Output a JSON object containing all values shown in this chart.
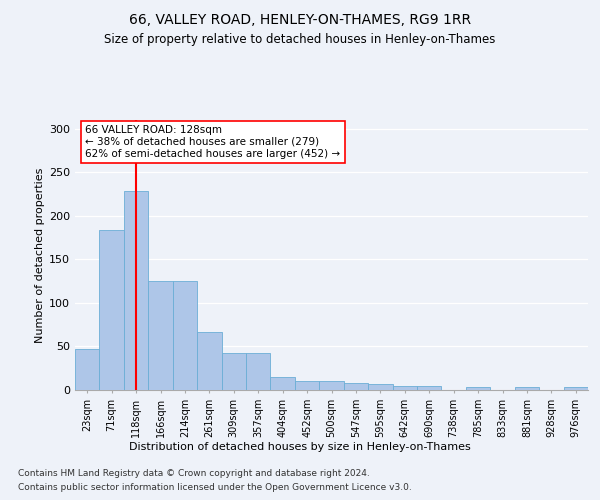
{
  "title": "66, VALLEY ROAD, HENLEY-ON-THAMES, RG9 1RR",
  "subtitle": "Size of property relative to detached houses in Henley-on-Thames",
  "xlabel": "Distribution of detached houses by size in Henley-on-Thames",
  "ylabel": "Number of detached properties",
  "footnote1": "Contains HM Land Registry data © Crown copyright and database right 2024.",
  "footnote2": "Contains public sector information licensed under the Open Government Licence v3.0.",
  "bins": [
    "23sqm",
    "71sqm",
    "118sqm",
    "166sqm",
    "214sqm",
    "261sqm",
    "309sqm",
    "357sqm",
    "404sqm",
    "452sqm",
    "500sqm",
    "547sqm",
    "595sqm",
    "642sqm",
    "690sqm",
    "738sqm",
    "785sqm",
    "833sqm",
    "881sqm",
    "928sqm",
    "976sqm"
  ],
  "bar_values": [
    47,
    184,
    228,
    125,
    125,
    67,
    42,
    42,
    15,
    10,
    10,
    8,
    7,
    5,
    5,
    0,
    3,
    0,
    3,
    0,
    3
  ],
  "bar_color": "#aec6e8",
  "bar_edgecolor": "#6baed6",
  "red_line_x": 2,
  "annotation_title": "66 VALLEY ROAD: 128sqm",
  "annotation_line1": "← 38% of detached houses are smaller (279)",
  "annotation_line2": "62% of semi-detached houses are larger (452) →",
  "ylim": [
    0,
    310
  ],
  "yticks": [
    0,
    50,
    100,
    150,
    200,
    250,
    300
  ],
  "bg_color": "#eef2f9",
  "plot_bg_color": "#eef2f9",
  "title_fontsize": 10,
  "subtitle_fontsize": 8.5,
  "ylabel_fontsize": 8,
  "xtick_fontsize": 7,
  "ytick_fontsize": 8,
  "annotation_fontsize": 7.5,
  "xlabel_fontsize": 8,
  "footnote_fontsize": 6.5
}
